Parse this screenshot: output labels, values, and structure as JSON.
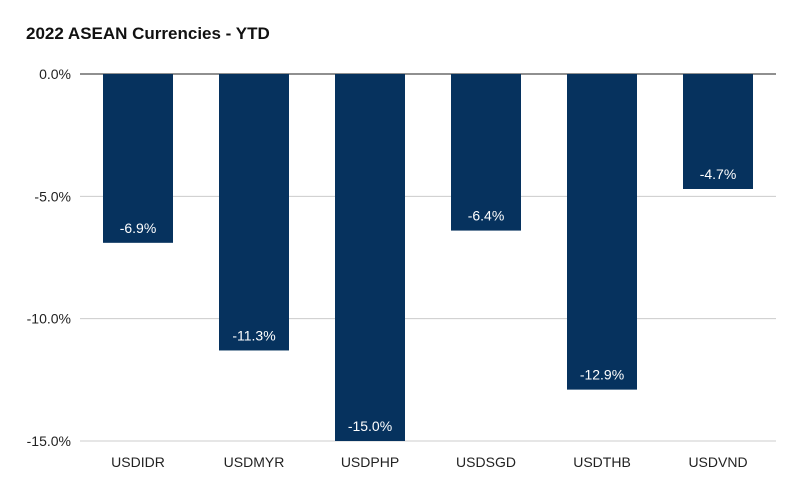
{
  "chart_data": {
    "type": "bar",
    "title": "2022 ASEAN Currencies - YTD",
    "categories": [
      "USDIDR",
      "USDMYR",
      "USDPHP",
      "USDSGD",
      "USDTHB",
      "USDVND"
    ],
    "values": [
      -6.9,
      -11.3,
      -15.0,
      -6.4,
      -12.9,
      -4.7
    ],
    "data_labels": [
      "-6.9%",
      "-11.3%",
      "-15.0%",
      "-6.4%",
      "-12.9%",
      "-4.7%"
    ],
    "y_ticks": [
      0,
      -5,
      -10,
      -15
    ],
    "y_tick_labels": [
      "0.0%",
      "-5.0%",
      "-10.0%",
      "-15.0%"
    ],
    "ylim": [
      -15,
      0
    ],
    "xlabel": "",
    "ylabel": "",
    "grid": true,
    "legend": "none",
    "colors": {
      "bar": "#06325e",
      "grid": "#cccccc",
      "axis": "#222222",
      "label": "#ffffff"
    }
  }
}
